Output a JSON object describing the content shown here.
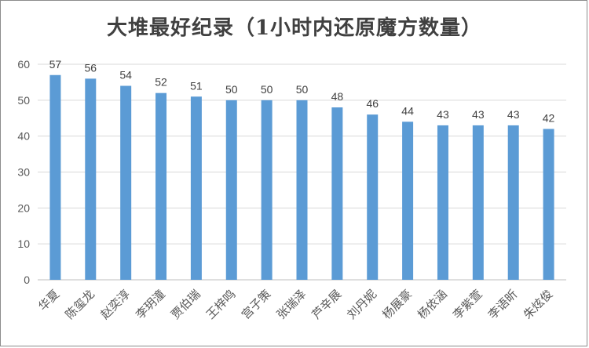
{
  "chart_data": {
    "type": "bar",
    "title": "大堆最好纪录（1小时内还原魔方数量）",
    "categories": [
      "华夏",
      "陈玺龙",
      "赵奕淳",
      "李玥潼",
      "贾伯瑞",
      "王梓鸣",
      "宫子策",
      "张瑞泽",
      "芦辛展",
      "刘丹妮",
      "杨展豪",
      "杨依涵",
      "李紫萱",
      "李语昕",
      "朱炫俊"
    ],
    "values": [
      57,
      56,
      54,
      52,
      51,
      50,
      50,
      50,
      48,
      46,
      44,
      43,
      43,
      43,
      42
    ],
    "ylim": [
      0,
      60
    ],
    "yticks": [
      0,
      10,
      20,
      30,
      40,
      50,
      60
    ],
    "grid": true,
    "legend": "none",
    "bar_color": "#5b9bd5"
  }
}
